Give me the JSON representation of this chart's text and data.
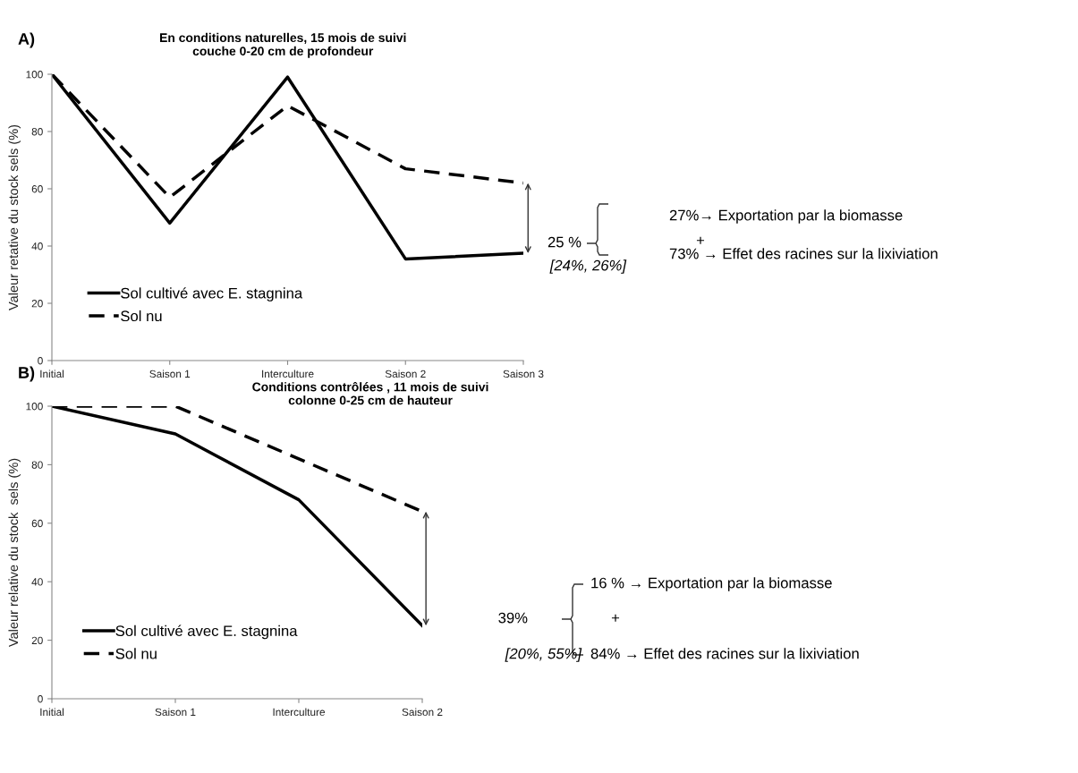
{
  "chart_data": [
    {
      "type": "line",
      "title": "En conditions naturelles, 15 mois de suivi\ncouche 0-20 cm de profondeur",
      "ylabel": "Valeur retative du stock sels (%)",
      "categories": [
        "Initial",
        "Saison 1",
        "Interculture",
        "Saison 2",
        "Saison 3"
      ],
      "series": [
        {
          "name": "Sol cultivé avec E. stagnina",
          "color": "#000000",
          "line_style": "solid",
          "values": [
            100,
            48,
            99,
            35.5,
            37.5
          ]
        },
        {
          "name": "Sol nu",
          "color": "#000000",
          "line_style": "dashed",
          "values": [
            100,
            57,
            89,
            67,
            62
          ]
        }
      ],
      "ylim": [
        0,
        100
      ],
      "yticks": [
        0,
        20,
        40,
        60,
        80,
        100
      ],
      "grid": false,
      "legend": "bottom left",
      "marker": "none",
      "annotations": [
        "A)",
        "25 %",
        "[24%, 26%]",
        "27%→ Exportation par la biomasse",
        "+",
        "73% → Effet des racines sur la lixiviation"
      ]
    },
    {
      "type": "line",
      "title": "Conditions contrôlées , 11 mois de suivi\ncolonne 0-25 cm de hauteur",
      "ylabel": "Valeur relative du stock  sels (%)",
      "categories": [
        "Initial",
        "Saison 1",
        "Interculture",
        "Saison 2"
      ],
      "series": [
        {
          "name": "Sol cultivé avec E. stagnina",
          "color": "#000000",
          "line_style": "solid",
          "values": [
            100,
            90.5,
            68,
            25
          ]
        },
        {
          "name": "Sol nu",
          "color": "#000000",
          "line_style": "dashed",
          "values": [
            100,
            100,
            82,
            64
          ]
        }
      ],
      "ylim": [
        0,
        100
      ],
      "yticks": [
        0,
        20,
        40,
        60,
        80,
        100
      ],
      "grid": false,
      "legend": "bottom left",
      "marker": "none",
      "annotations": [
        "B)",
        "39%",
        "[20%, 55%]",
        "16 % → Exportation par la biomasse",
        "+",
        "84% → Effet des racines sur la lixiviation"
      ]
    }
  ]
}
